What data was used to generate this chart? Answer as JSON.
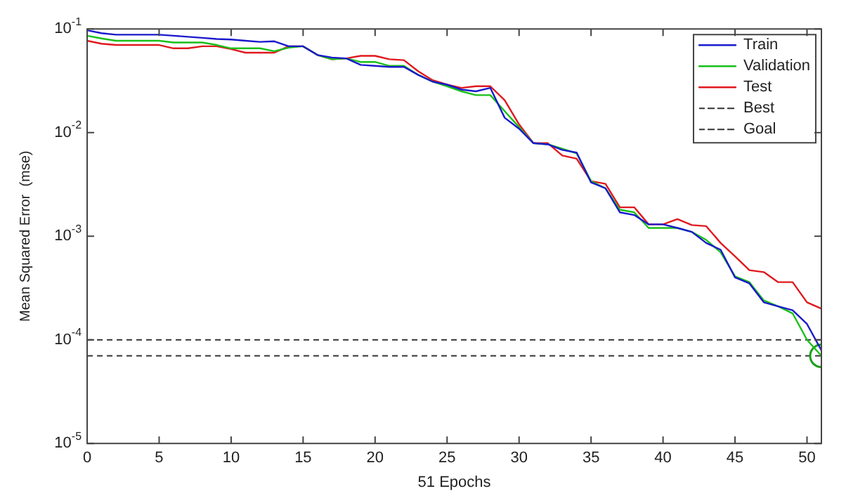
{
  "chart_data": {
    "type": "line",
    "xlabel": "51 Epochs",
    "ylabel": "Mean Squared Error  (mse)",
    "log": "y",
    "grid": false,
    "legend": "top right",
    "marker": "none",
    "x": [
      0,
      1,
      2,
      3,
      4,
      5,
      6,
      7,
      8,
      9,
      10,
      11,
      12,
      13,
      14,
      15,
      16,
      17,
      18,
      19,
      20,
      21,
      22,
      23,
      24,
      25,
      26,
      27,
      28,
      29,
      30,
      31,
      32,
      33,
      34,
      35,
      36,
      37,
      38,
      39,
      40,
      41,
      42,
      43,
      44,
      45,
      46,
      47,
      48,
      49,
      50,
      51
    ],
    "xlim": [
      0,
      51
    ],
    "xticks": [
      0,
      5,
      10,
      15,
      20,
      25,
      30,
      35,
      40,
      45,
      50
    ],
    "ylim": [
      1e-05,
      0.1
    ],
    "yticks": [
      {
        "value": 0.1,
        "label": "10$^{-1}$"
      },
      {
        "value": 0.01,
        "label": "10$^{-2}$"
      },
      {
        "value": 0.001,
        "label": "10$^{-3}$"
      },
      {
        "value": 0.0001,
        "label": "10$^{-4}$"
      },
      {
        "value": 1e-05,
        "label": "10$^{-5}$"
      }
    ],
    "series": [
      {
        "name": "Train",
        "color": "#1a1acc",
        "line_style": "solid",
        "values": [
          0.097,
          0.091,
          0.088,
          0.088,
          0.088,
          0.088,
          0.086,
          0.084,
          0.082,
          0.08,
          0.079,
          0.077,
          0.075,
          0.076,
          0.068,
          0.068,
          0.056,
          0.053,
          0.052,
          0.045,
          0.044,
          0.043,
          0.043,
          0.036,
          0.031,
          0.029,
          0.026,
          0.025,
          0.027,
          0.0139,
          0.0109,
          0.0079,
          0.0077,
          0.0068,
          0.0064,
          0.0033,
          0.0029,
          0.0017,
          0.0016,
          0.0013,
          0.0013,
          0.0012,
          0.0011,
          0.00086,
          0.00074,
          0.0004,
          0.00035,
          0.00023,
          0.00021,
          0.000193,
          0.000142,
          7.9e-05
        ]
      },
      {
        "name": "Validation",
        "color": "#19c019",
        "line_style": "solid",
        "values": [
          0.086,
          0.081,
          0.077,
          0.077,
          0.077,
          0.077,
          0.074,
          0.074,
          0.074,
          0.07,
          0.065,
          0.065,
          0.065,
          0.061,
          0.066,
          0.068,
          0.056,
          0.051,
          0.052,
          0.048,
          0.048,
          0.044,
          0.044,
          0.036,
          0.031,
          0.028,
          0.025,
          0.023,
          0.023,
          0.0161,
          0.0113,
          0.0079,
          0.0077,
          0.007,
          0.0063,
          0.0034,
          0.0029,
          0.0018,
          0.0017,
          0.0012,
          0.0012,
          0.0012,
          0.0011,
          0.00092,
          0.0007,
          0.00041,
          0.00036,
          0.00024,
          0.00021,
          0.00018,
          0.0001,
          7e-05
        ]
      },
      {
        "name": "Test",
        "color": "#e0191e",
        "line_style": "solid",
        "values": [
          0.077,
          0.072,
          0.07,
          0.07,
          0.07,
          0.07,
          0.065,
          0.065,
          0.068,
          0.068,
          0.064,
          0.059,
          0.059,
          0.059,
          0.068,
          0.068,
          0.056,
          0.051,
          0.052,
          0.055,
          0.055,
          0.051,
          0.05,
          0.039,
          0.032,
          0.029,
          0.027,
          0.028,
          0.028,
          0.0205,
          0.012,
          0.0079,
          0.0079,
          0.006,
          0.0056,
          0.0034,
          0.0032,
          0.0019,
          0.0019,
          0.0013,
          0.0013,
          0.00146,
          0.00128,
          0.00125,
          0.00086,
          0.00064,
          0.00047,
          0.00045,
          0.00036,
          0.00036,
          0.00023,
          0.0002
        ]
      },
      {
        "type": "scatter",
        "color": "#19a019",
        "marker": "circle",
        "x": [
          51
        ],
        "values": [
          7e-05
        ]
      }
    ],
    "ref_lines": [
      {
        "axis": "y",
        "value": 7e-05,
        "label": "Best",
        "color": "#333333",
        "line_style": "dashed"
      },
      {
        "axis": "y",
        "value": 0.0001,
        "label": "Goal",
        "color": "#333333",
        "line_style": "dashed"
      }
    ]
  }
}
